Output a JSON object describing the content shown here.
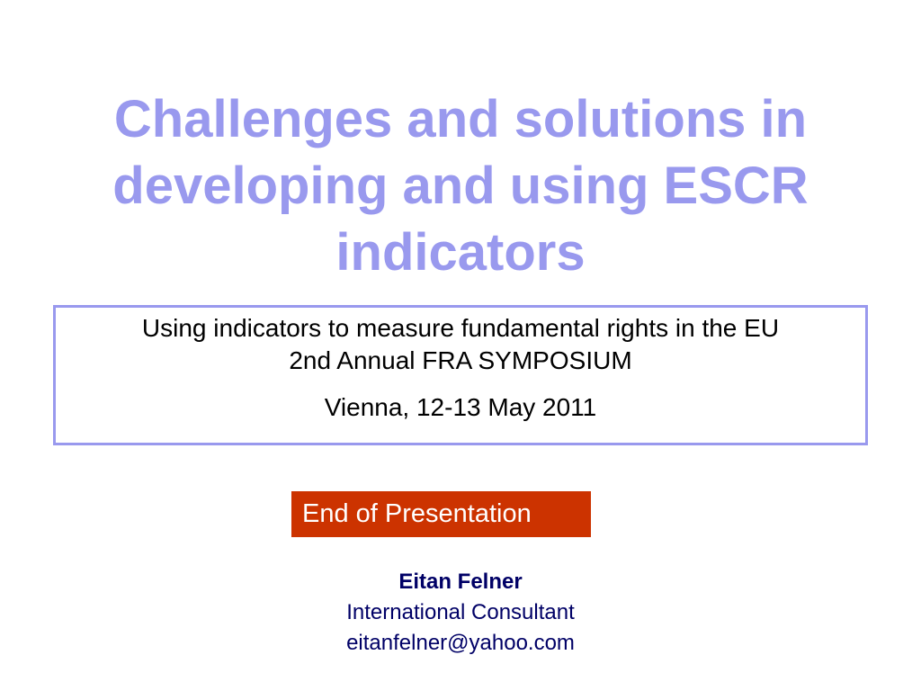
{
  "title": {
    "lines": [
      "Challenges and solutions in",
      "developing and using ESCR",
      "indicators"
    ]
  },
  "subtitle_box": {
    "line1": "Using indicators to measure fundamental rights in the EU",
    "line2": "2nd Annual FRA SYMPOSIUM",
    "line3": "Vienna, 12-13 May 2011"
  },
  "end_label": "End of Presentation",
  "author": {
    "name": "Eitan Felner",
    "role": "International Consultant",
    "email": "eitanfelner@yahoo.com"
  },
  "colors": {
    "title": "#9999ee",
    "box_border": "#9999ee",
    "end_banner": "#cc3300",
    "author_text": "#000066"
  }
}
